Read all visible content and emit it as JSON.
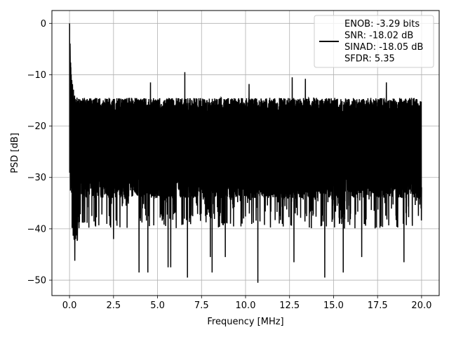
{
  "chart_data": {
    "type": "line",
    "xlabel": "Frequency [MHz]",
    "ylabel": "PSD [dB]",
    "xlim": [
      -1.0,
      21.0
    ],
    "ylim": [
      -53.0,
      2.5
    ],
    "xticks": [
      0.0,
      2.5,
      5.0,
      7.5,
      10.0,
      12.5,
      15.0,
      17.5,
      20.0
    ],
    "xtick_labels": [
      "0.0",
      "2.5",
      "5.0",
      "7.5",
      "10.0",
      "12.5",
      "15.0",
      "17.5",
      "20.0"
    ],
    "yticks": [
      0,
      -10,
      -20,
      -30,
      -40,
      -50
    ],
    "ytick_labels": [
      "0",
      "−10",
      "−20",
      "−30",
      "−40",
      "−50"
    ],
    "grid": true,
    "legend_position": "top-right",
    "series": [
      {
        "name": "ENOB: -3.29 bits\nSNR: -18.02 dB\nSINAD: -18.05 dB\nSFDR: 5.35",
        "color": "#000000",
        "x_range": [
          0.0,
          20.0
        ],
        "peak": {
          "x": 0.0,
          "y": 0.0
        },
        "low_band_x": [
          0.0,
          0.05,
          0.1,
          0.2,
          0.35,
          0.5
        ],
        "low_band_top": [
          0.0,
          -8,
          -11,
          -13.5,
          -15.5,
          -16
        ],
        "low_band_bottom": [
          -21,
          -31,
          -33,
          -38,
          -42,
          -37
        ],
        "noise_floor_top_typical": -16,
        "noise_floor_bottom_typical": -32,
        "upper_spikes": [
          {
            "x": 6.55,
            "y": -9.5
          },
          {
            "x": 12.65,
            "y": -10.5
          },
          {
            "x": 13.4,
            "y": -10.8
          },
          {
            "x": 18.0,
            "y": -11.5
          },
          {
            "x": 10.2,
            "y": -11.8
          },
          {
            "x": 4.6,
            "y": -11.5
          }
        ],
        "lower_spikes": [
          {
            "x": 0.35,
            "y": -42.0
          },
          {
            "x": 2.5,
            "y": -42.0
          },
          {
            "x": 3.95,
            "y": -48.5
          },
          {
            "x": 4.45,
            "y": -48.5
          },
          {
            "x": 5.6,
            "y": -47.5
          },
          {
            "x": 5.75,
            "y": -47.5
          },
          {
            "x": 6.7,
            "y": -49.5
          },
          {
            "x": 8.0,
            "y": -45.5
          },
          {
            "x": 8.1,
            "y": -48.5
          },
          {
            "x": 8.85,
            "y": -45.5
          },
          {
            "x": 10.7,
            "y": -50.5
          },
          {
            "x": 12.75,
            "y": -46.5
          },
          {
            "x": 14.5,
            "y": -49.5
          },
          {
            "x": 15.55,
            "y": -48.5
          },
          {
            "x": 16.6,
            "y": -45.5
          },
          {
            "x": 19.0,
            "y": -46.5
          }
        ]
      }
    ]
  }
}
